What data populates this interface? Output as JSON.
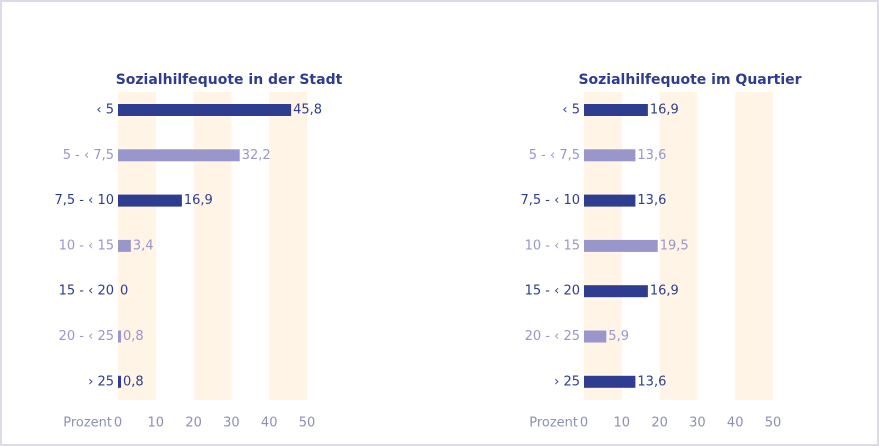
{
  "chart_data": [
    {
      "type": "bar",
      "orientation": "horizontal",
      "title": "Sozialhilfequote in der Stadt",
      "xlabel": "Prozent",
      "categories": [
        "‹ 5",
        "5 - ‹ 7,5",
        "7,5 - ‹ 10",
        "10 - ‹ 15",
        "15 - ‹ 20",
        "20 - ‹ 25",
        "› 25"
      ],
      "values": [
        45.8,
        32.2,
        16.9,
        3.4,
        0,
        0.8,
        0.8
      ],
      "value_labels": [
        "45,8",
        "32,2",
        "16,9",
        "3,4",
        "0",
        "0,8",
        "0,8"
      ],
      "colors": [
        "#2e3d8f",
        "#9996cb",
        "#2e3d8f",
        "#9996cb",
        "#2e3d8f",
        "#9996cb",
        "#2e3d8f"
      ],
      "xlim": [
        0,
        50
      ],
      "xticks": [
        0,
        10,
        20,
        30,
        40,
        50
      ],
      "grid_bands": true
    },
    {
      "type": "bar",
      "orientation": "horizontal",
      "title": "Sozialhilfequote im Quartier",
      "xlabel": "Prozent",
      "categories": [
        "‹ 5",
        "5 - ‹ 7,5",
        "7,5 - ‹ 10",
        "10 - ‹ 15",
        "15 - ‹ 20",
        "20 - ‹ 25",
        "› 25"
      ],
      "values": [
        16.9,
        13.6,
        13.6,
        19.5,
        16.9,
        5.9,
        13.6
      ],
      "value_labels": [
        "16,9",
        "13,6",
        "13,6",
        "19,5",
        "16,9",
        "5,9",
        "13,6"
      ],
      "colors": [
        "#2e3d8f",
        "#9996cb",
        "#2e3d8f",
        "#9996cb",
        "#2e3d8f",
        "#9996cb",
        "#2e3d8f"
      ],
      "xlim": [
        0,
        50
      ],
      "xticks": [
        0,
        10,
        20,
        30,
        40,
        50
      ],
      "grid_bands": true
    }
  ]
}
